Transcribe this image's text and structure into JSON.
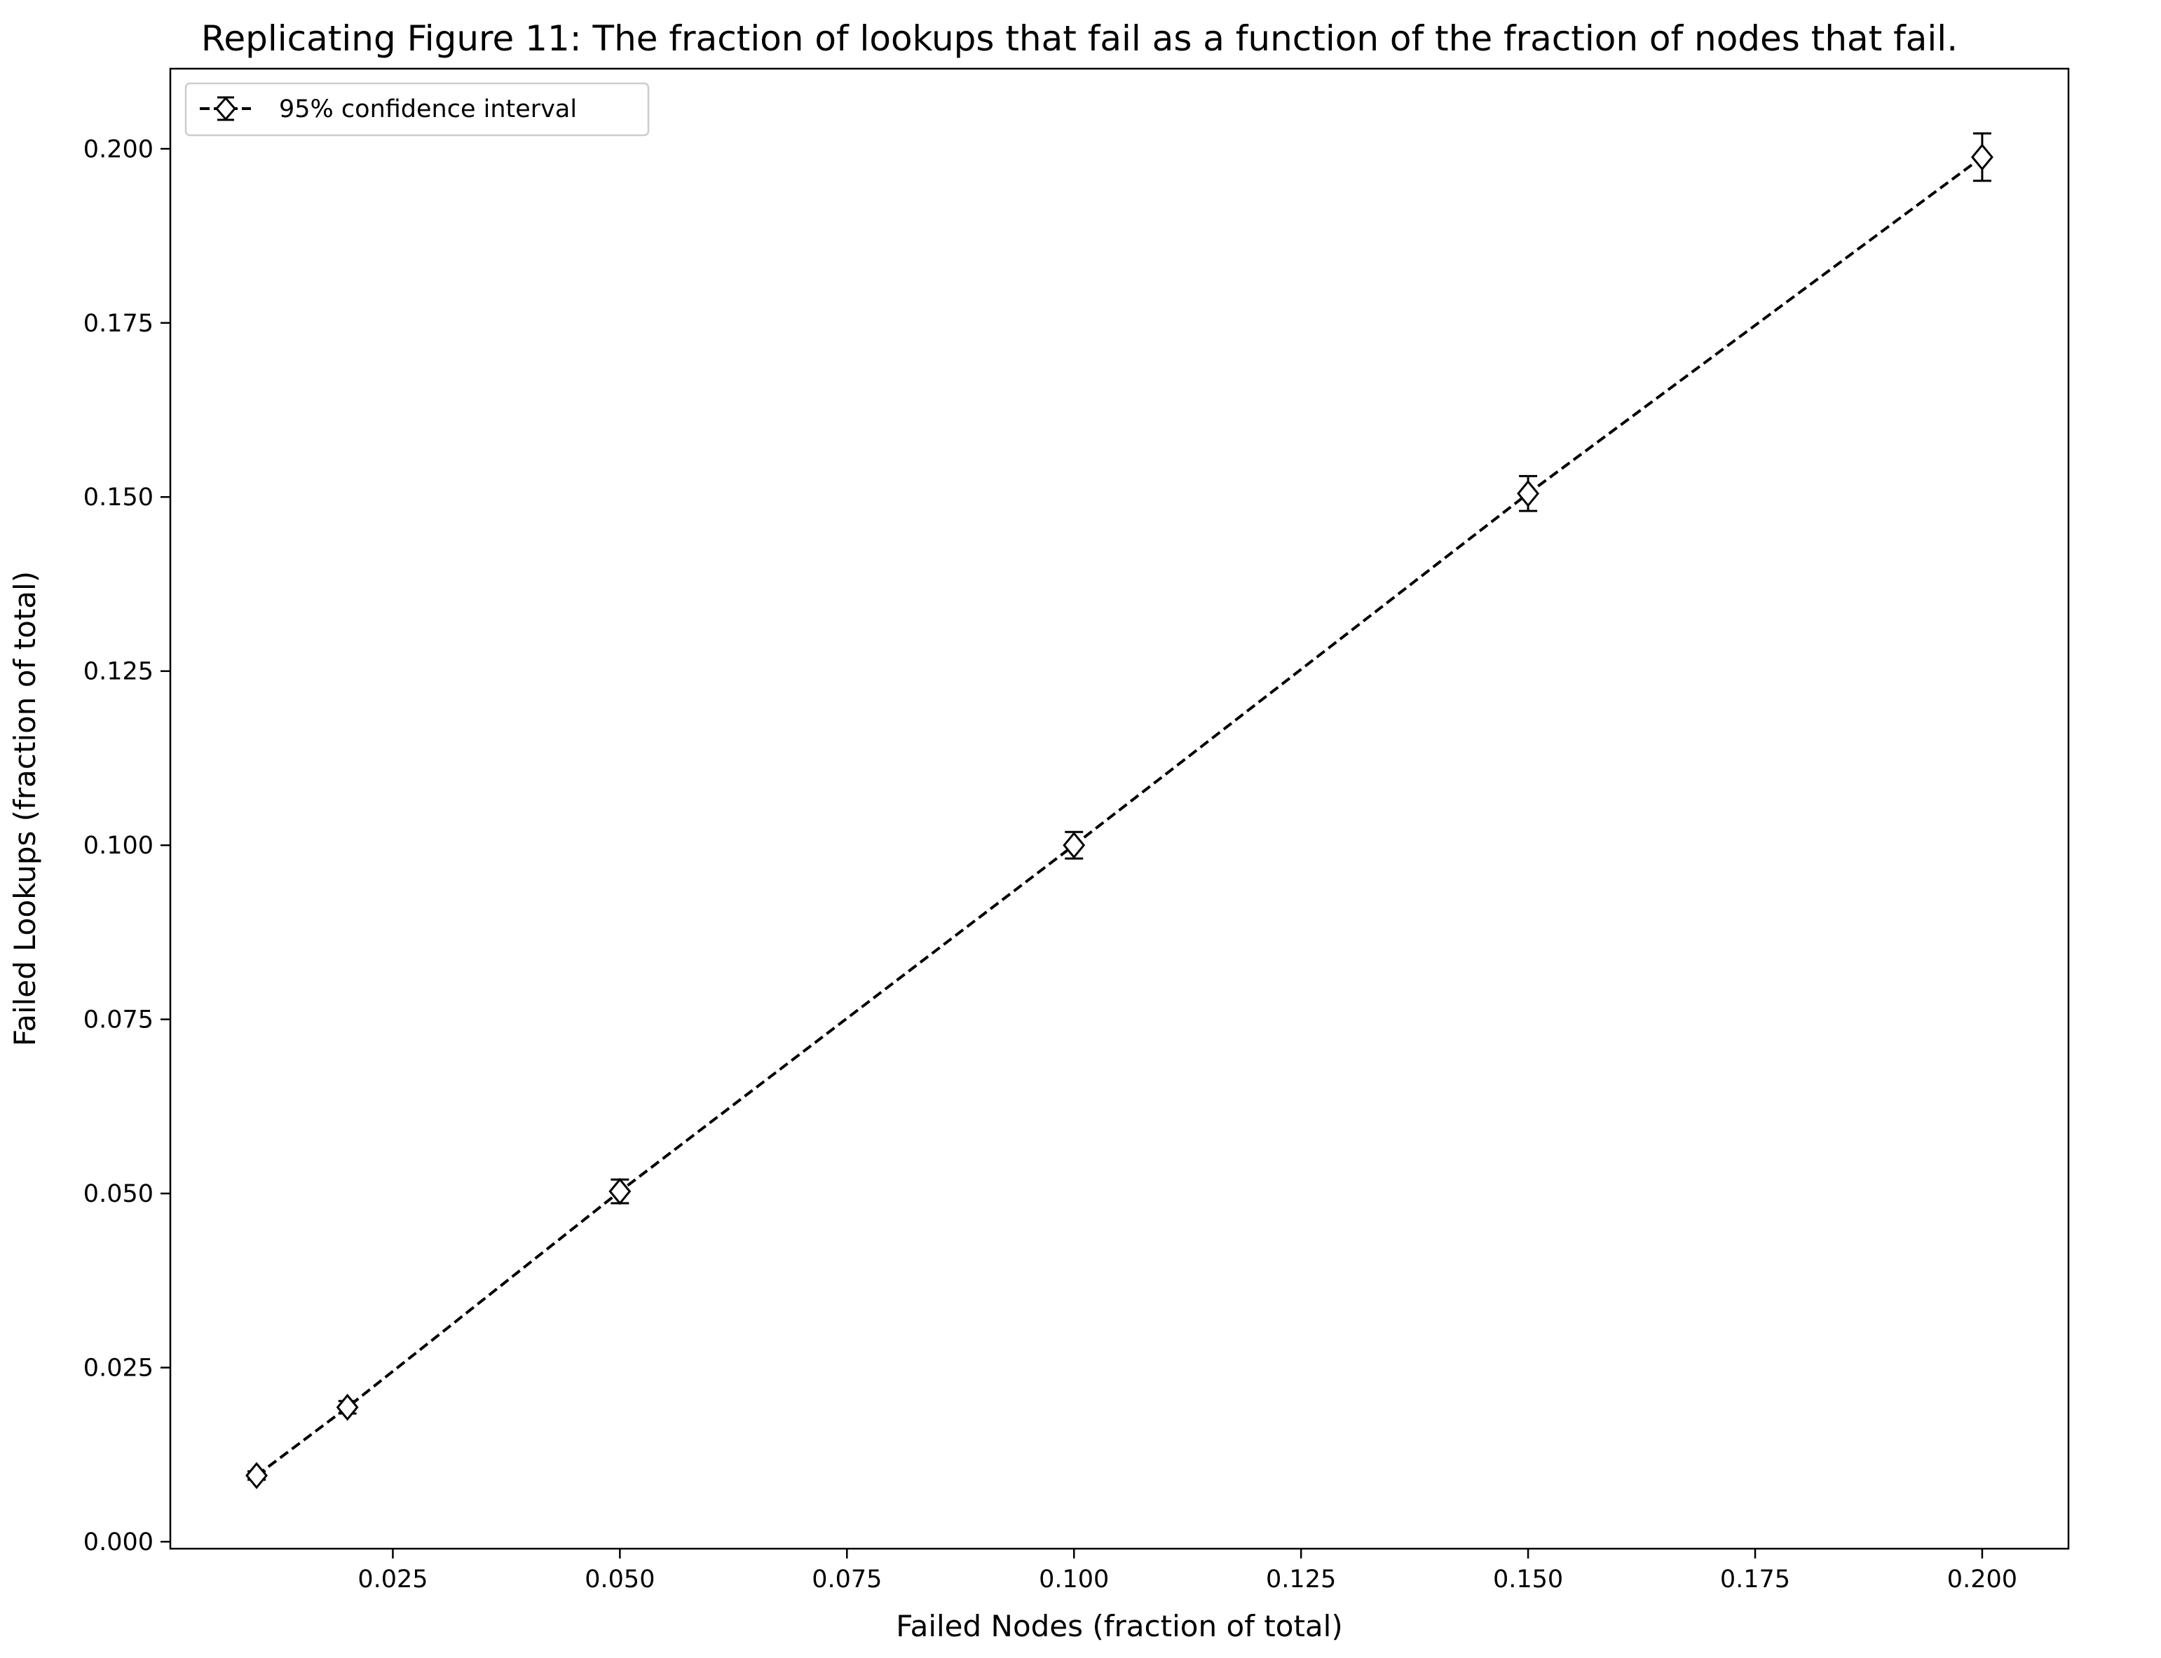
{
  "chart_data": {
    "type": "line",
    "title": "Replicating Figure 11: The fraction of lookups that fail as a function of the fraction of nodes that fail.",
    "xlabel": "Failed Nodes (fraction of total)",
    "ylabel": "Failed Lookups (fraction of total)",
    "xlim": [
      0.0005,
      0.2095
    ],
    "ylim": [
      -0.001,
      0.2115
    ],
    "x_ticks": [
      {
        "value": 0.025,
        "label": "0.025"
      },
      {
        "value": 0.05,
        "label": "0.050"
      },
      {
        "value": 0.075,
        "label": "0.075"
      },
      {
        "value": 0.1,
        "label": "0.100"
      },
      {
        "value": 0.125,
        "label": "0.125"
      },
      {
        "value": 0.15,
        "label": "0.150"
      },
      {
        "value": 0.175,
        "label": "0.175"
      },
      {
        "value": 0.2,
        "label": "0.200"
      }
    ],
    "y_ticks": [
      {
        "value": 0.0,
        "label": "0.000"
      },
      {
        "value": 0.025,
        "label": "0.025"
      },
      {
        "value": 0.05,
        "label": "0.050"
      },
      {
        "value": 0.075,
        "label": "0.075"
      },
      {
        "value": 0.1,
        "label": "0.100"
      },
      {
        "value": 0.125,
        "label": "0.125"
      },
      {
        "value": 0.15,
        "label": "0.150"
      },
      {
        "value": 0.175,
        "label": "0.175"
      },
      {
        "value": 0.2,
        "label": "0.200"
      }
    ],
    "grid": false,
    "legend_position": "upper-left",
    "series": [
      {
        "name": "95% confidence interval",
        "color": "#000000",
        "line_style": "dashed",
        "marker": "diamond",
        "x": [
          0.01,
          0.02,
          0.05,
          0.1,
          0.15,
          0.2
        ],
        "y": [
          0.0095,
          0.0193,
          0.0503,
          0.1,
          0.1505,
          0.1988
        ],
        "error": [
          0.0006,
          0.0009,
          0.0017,
          0.0019,
          0.0025,
          0.0034
        ]
      }
    ]
  }
}
